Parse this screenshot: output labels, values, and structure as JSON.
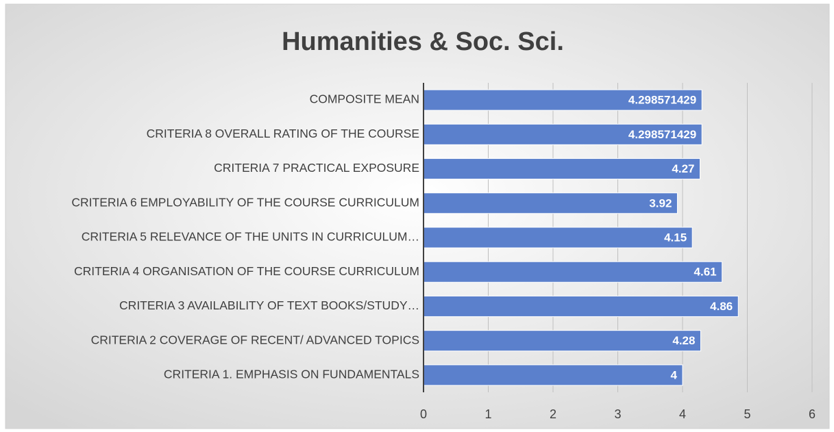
{
  "chart_data": {
    "type": "barh",
    "title": "Humanities & Soc. Sci.",
    "categories": [
      "COMPOSITE MEAN ",
      "CRITERIA 8 OVERALL RATING OF THE COURSE",
      "CRITERIA 7 PRACTICAL EXPOSURE",
      "CRITERIA 6 EMPLOYABILITY OF THE COURSE CURRICULUM",
      "CRITERIA 5  RELEVANCE OF THE UNITS IN CURRICULUM…",
      "CRITERIA 4 ORGANISATION OF THE COURSE CURRICULUM",
      "CRITERIA 3  AVAILABILITY OF TEXT BOOKS/STUDY…",
      "CRITERIA 2 COVERAGE OF RECENT/ ADVANCED TOPICS",
      "CRITERIA 1. EMPHASIS ON FUNDAMENTALS "
    ],
    "values": [
      4.298571429,
      4.298571429,
      4.27,
      3.92,
      4.15,
      4.61,
      4.86,
      4.28,
      4
    ],
    "color": "#5b80cc",
    "xlim": [
      0,
      6
    ],
    "xticks": [
      0,
      1,
      2,
      3,
      4,
      5,
      6
    ],
    "grid": true
  }
}
